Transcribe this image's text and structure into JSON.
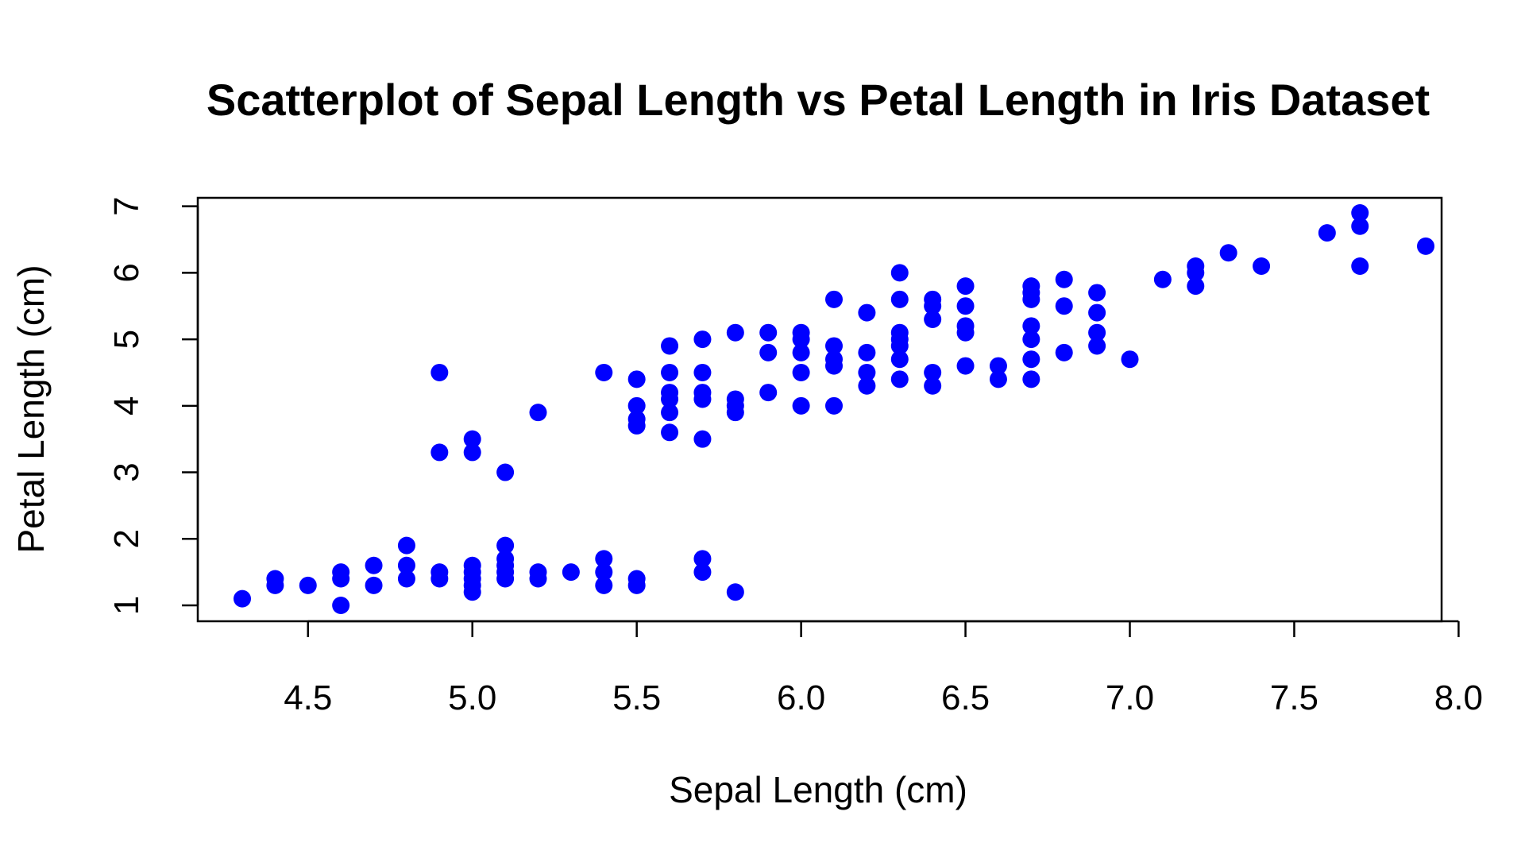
{
  "chart_data": {
    "type": "scatter",
    "title": "Scatterplot of Sepal Length vs Petal Length in Iris Dataset",
    "xlabel": "Sepal Length (cm)",
    "ylabel": "Petal Length (cm)",
    "xlim": [
      4.3,
      7.9
    ],
    "ylim": [
      1.0,
      6.9
    ],
    "xticks": [
      4.5,
      5.0,
      5.5,
      6.0,
      6.5,
      7.0,
      7.5,
      8.0
    ],
    "xtick_labels": [
      "4.5",
      "5.0",
      "5.5",
      "6.0",
      "6.5",
      "7.0",
      "7.5",
      "8.0"
    ],
    "yticks": [
      1,
      2,
      3,
      4,
      5,
      6,
      7
    ],
    "ytick_labels": [
      "1",
      "2",
      "3",
      "4",
      "5",
      "6",
      "7"
    ],
    "grid": false,
    "point_color": "#0000ff",
    "points": [
      [
        4.3,
        1.1
      ],
      [
        4.4,
        1.3
      ],
      [
        4.4,
        1.4
      ],
      [
        4.5,
        1.3
      ],
      [
        4.6,
        1.0
      ],
      [
        4.6,
        1.4
      ],
      [
        4.6,
        1.5
      ],
      [
        4.7,
        1.3
      ],
      [
        4.7,
        1.6
      ],
      [
        4.8,
        1.4
      ],
      [
        4.8,
        1.6
      ],
      [
        4.8,
        1.9
      ],
      [
        4.9,
        1.4
      ],
      [
        4.9,
        1.5
      ],
      [
        4.9,
        3.3
      ],
      [
        4.9,
        4.5
      ],
      [
        5.0,
        1.2
      ],
      [
        5.0,
        1.3
      ],
      [
        5.0,
        1.4
      ],
      [
        5.0,
        1.5
      ],
      [
        5.0,
        1.6
      ],
      [
        5.0,
        3.3
      ],
      [
        5.0,
        3.5
      ],
      [
        5.1,
        1.4
      ],
      [
        5.1,
        1.5
      ],
      [
        5.1,
        1.6
      ],
      [
        5.1,
        1.7
      ],
      [
        5.1,
        1.9
      ],
      [
        5.1,
        3.0
      ],
      [
        5.2,
        1.4
      ],
      [
        5.2,
        1.5
      ],
      [
        5.2,
        3.9
      ],
      [
        5.3,
        1.5
      ],
      [
        5.4,
        1.3
      ],
      [
        5.4,
        1.5
      ],
      [
        5.4,
        1.7
      ],
      [
        5.4,
        4.5
      ],
      [
        5.5,
        1.3
      ],
      [
        5.5,
        1.4
      ],
      [
        5.5,
        3.7
      ],
      [
        5.5,
        3.8
      ],
      [
        5.5,
        4.0
      ],
      [
        5.5,
        4.4
      ],
      [
        5.6,
        3.6
      ],
      [
        5.6,
        3.9
      ],
      [
        5.6,
        4.1
      ],
      [
        5.6,
        4.2
      ],
      [
        5.6,
        4.5
      ],
      [
        5.6,
        4.9
      ],
      [
        5.7,
        1.5
      ],
      [
        5.7,
        1.7
      ],
      [
        5.7,
        3.5
      ],
      [
        5.7,
        4.1
      ],
      [
        5.7,
        4.2
      ],
      [
        5.7,
        4.5
      ],
      [
        5.7,
        5.0
      ],
      [
        5.8,
        1.2
      ],
      [
        5.8,
        3.9
      ],
      [
        5.8,
        4.0
      ],
      [
        5.8,
        4.1
      ],
      [
        5.8,
        5.1
      ],
      [
        5.9,
        4.2
      ],
      [
        5.9,
        4.8
      ],
      [
        5.9,
        5.1
      ],
      [
        6.0,
        4.0
      ],
      [
        6.0,
        4.5
      ],
      [
        6.0,
        4.8
      ],
      [
        6.0,
        5.0
      ],
      [
        6.0,
        5.1
      ],
      [
        6.1,
        4.0
      ],
      [
        6.1,
        4.6
      ],
      [
        6.1,
        4.7
      ],
      [
        6.1,
        4.9
      ],
      [
        6.1,
        5.6
      ],
      [
        6.2,
        4.3
      ],
      [
        6.2,
        4.5
      ],
      [
        6.2,
        4.8
      ],
      [
        6.2,
        5.4
      ],
      [
        6.3,
        4.4
      ],
      [
        6.3,
        4.7
      ],
      [
        6.3,
        4.9
      ],
      [
        6.3,
        5.0
      ],
      [
        6.3,
        5.1
      ],
      [
        6.3,
        5.6
      ],
      [
        6.3,
        6.0
      ],
      [
        6.4,
        4.3
      ],
      [
        6.4,
        4.5
      ],
      [
        6.4,
        5.3
      ],
      [
        6.4,
        5.5
      ],
      [
        6.4,
        5.6
      ],
      [
        6.5,
        4.6
      ],
      [
        6.5,
        5.1
      ],
      [
        6.5,
        5.2
      ],
      [
        6.5,
        5.5
      ],
      [
        6.5,
        5.8
      ],
      [
        6.6,
        4.4
      ],
      [
        6.6,
        4.6
      ],
      [
        6.7,
        4.4
      ],
      [
        6.7,
        4.7
      ],
      [
        6.7,
        5.0
      ],
      [
        6.7,
        5.2
      ],
      [
        6.7,
        5.6
      ],
      [
        6.7,
        5.7
      ],
      [
        6.7,
        5.8
      ],
      [
        6.8,
        4.8
      ],
      [
        6.8,
        5.5
      ],
      [
        6.8,
        5.9
      ],
      [
        6.9,
        4.9
      ],
      [
        6.9,
        5.1
      ],
      [
        6.9,
        5.4
      ],
      [
        6.9,
        5.7
      ],
      [
        7.0,
        4.7
      ],
      [
        7.1,
        5.9
      ],
      [
        7.2,
        5.8
      ],
      [
        7.2,
        6.0
      ],
      [
        7.2,
        6.1
      ],
      [
        7.3,
        6.3
      ],
      [
        7.4,
        6.1
      ],
      [
        7.6,
        6.6
      ],
      [
        7.7,
        6.1
      ],
      [
        7.7,
        6.7
      ],
      [
        7.7,
        6.9
      ],
      [
        7.9,
        6.4
      ]
    ]
  }
}
